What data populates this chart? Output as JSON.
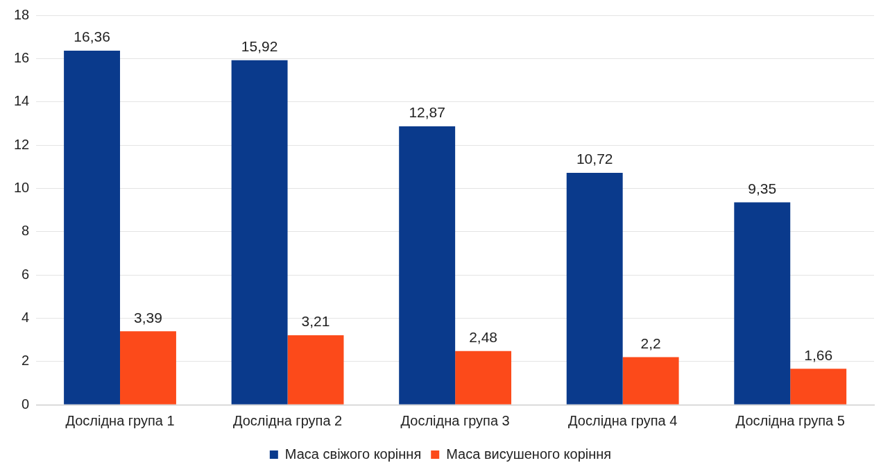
{
  "chart_data": {
    "type": "bar",
    "categories": [
      "Дослідна група 1",
      "Дослідна група 2",
      "Дослідна група 3",
      "Дослідна група 4",
      "Дослідна група 5"
    ],
    "series": [
      {
        "name": "Маса свіжого коріння",
        "color": "#0a3a8c",
        "values": [
          16.36,
          15.92,
          12.87,
          10.72,
          9.35
        ],
        "value_labels": [
          "16,36",
          "15,92",
          "12,87",
          "10,72",
          "9,35"
        ]
      },
      {
        "name": "Маса висушеного коріння",
        "color": "#fc4a1a",
        "values": [
          3.39,
          3.21,
          2.48,
          2.2,
          1.66
        ],
        "value_labels": [
          "3,39",
          "3,21",
          "2,48",
          "2,2",
          "1,66"
        ]
      }
    ],
    "ylim": [
      0,
      18
    ],
    "yticks": [
      0,
      2,
      4,
      6,
      8,
      10,
      12,
      14,
      16,
      18
    ],
    "grid": "y",
    "legend": "bottom"
  }
}
